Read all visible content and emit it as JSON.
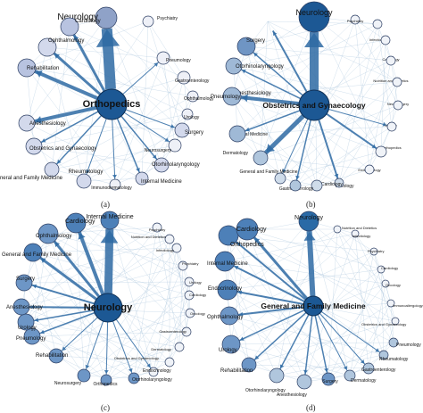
{
  "panels": [
    {
      "id": "a",
      "caption": "(a)",
      "center": "Orthopedics",
      "nodes": [
        {
          "label": "Neurology",
          "fill": "#8fa2c8"
        },
        {
          "label": "Psychiatry",
          "fill": "#eef0f7"
        },
        {
          "label": "Pneumology",
          "fill": "#eef0f7"
        },
        {
          "label": "Gastroenterology",
          "fill": "#eef0f7"
        },
        {
          "label": "Ophthalmology",
          "fill": "#eef0f7"
        },
        {
          "label": "Urology",
          "fill": "#eef0f7"
        },
        {
          "label": "Surgery",
          "fill": "#d3d9ec"
        },
        {
          "label": "Neurosurgery",
          "fill": "#eef0f7"
        },
        {
          "label": "Otorhinolaryngology",
          "fill": "#d3d9ec"
        },
        {
          "label": "Internal Medicine",
          "fill": "#d3d9ec"
        },
        {
          "label": "Immunodermatology",
          "fill": "#eef0f7"
        },
        {
          "label": "Rheumatology",
          "fill": "#d3d9ec"
        },
        {
          "label": "General and Family Medicine",
          "fill": "#d3d9ec"
        },
        {
          "label": "Obstetrics and Gynaecology",
          "fill": "#d3d9ec"
        },
        {
          "label": "Anesthesiology",
          "fill": "#d3d9ec"
        },
        {
          "label": "Rehabilitation",
          "fill": "#b8c3e0"
        },
        {
          "label": "Ophthalmology",
          "fill": "#d3d9ec"
        },
        {
          "label": "Cardiology",
          "fill": "#b8c3e0"
        }
      ]
    },
    {
      "id": "b",
      "caption": "(b)",
      "center": "Obstetrics and Gynaecology",
      "nodes": [
        {
          "label": "Neurology",
          "fill": "#1c5894"
        },
        {
          "label": "Psychiatry",
          "fill": "#f0f3f8"
        },
        {
          "label": "Infectiology",
          "fill": "#f0f3f8"
        },
        {
          "label": "Cardiology",
          "fill": "#f0f3f8"
        },
        {
          "label": "Nutrition and Dietetics",
          "fill": "#f0f3f8"
        },
        {
          "label": "Neurosurgery",
          "fill": "#f0f3f8"
        },
        {
          "label": "Urology",
          "fill": "#f0f3f8"
        },
        {
          "label": "Orthopedics",
          "fill": "#f0f3f8"
        },
        {
          "label": "Endocrinology",
          "fill": "#f0f3f8"
        },
        {
          "label": "Oncology",
          "fill": "#f0f3f8"
        },
        {
          "label": "Cardiology",
          "fill": "#cfdcea"
        },
        {
          "label": "Gastroenterology",
          "fill": "#cfdcea"
        },
        {
          "label": "General and Family Medicine",
          "fill": "#b0c6dd"
        },
        {
          "label": "Dermatology",
          "fill": "#cfdcea"
        },
        {
          "label": "Internal Medicine",
          "fill": "#b0c6dd"
        },
        {
          "label": "Anesthesiology",
          "fill": "#9fb9d6"
        },
        {
          "label": "Pneumology",
          "fill": "#9fb9d6"
        },
        {
          "label": "Otorhinolaryngology",
          "fill": "#9fb9d6"
        },
        {
          "label": "Surgery",
          "fill": "#6f95c4"
        }
      ]
    },
    {
      "id": "c",
      "caption": "(c)",
      "center": "Neurology",
      "nodes": [
        {
          "label": "Internal Medicine",
          "fill": "#4d80b8"
        },
        {
          "label": "Psychiatry",
          "fill": "#f0f3f8"
        },
        {
          "label": "Nutrition and Dietetics",
          "fill": "#f0f3f8"
        },
        {
          "label": "Infectiology",
          "fill": "#f0f3f8"
        },
        {
          "label": "Psychiatry",
          "fill": "#f0f3f8"
        },
        {
          "label": "Urology",
          "fill": "#f0f3f8"
        },
        {
          "label": "Cardiology",
          "fill": "#f0f3f8"
        },
        {
          "label": "Oncology",
          "fill": "#f0f3f8"
        },
        {
          "label": "Gastroenterology",
          "fill": "#f0f3f8"
        },
        {
          "label": "Dermatology",
          "fill": "#f0f3f8"
        },
        {
          "label": "Obstetrics and Gynaecology",
          "fill": "#f0f3f8"
        },
        {
          "label": "Endocrinology",
          "fill": "#f0f3f8"
        },
        {
          "label": "Otorhinolaryngology",
          "fill": "#6d96c6"
        },
        {
          "label": "Orthopedics",
          "fill": "#6d96c6"
        },
        {
          "label": "Neurosurgery",
          "fill": "#6d96c6"
        },
        {
          "label": "Rehabilitation",
          "fill": "#6d96c6"
        },
        {
          "label": "Pneumology",
          "fill": "#6d96c6"
        },
        {
          "label": "Urology",
          "fill": "#6d96c6"
        },
        {
          "label": "Anesthesiology",
          "fill": "#6d96c6"
        },
        {
          "label": "Surgery",
          "fill": "#6d96c6"
        },
        {
          "label": "General and Family Medicine",
          "fill": "#4d80b8"
        },
        {
          "label": "Ophthalmology",
          "fill": "#6d96c6"
        },
        {
          "label": "Cardiology",
          "fill": "#4d80b8"
        }
      ]
    },
    {
      "id": "d",
      "caption": "(d)",
      "center": "General and Family Medicine",
      "nodes": [
        {
          "label": "Neurology",
          "fill": "#2a6aa6"
        },
        {
          "label": "Nutrition and Dietetics",
          "fill": "#f0f3f8"
        },
        {
          "label": "Infectiology",
          "fill": "#f0f3f8"
        },
        {
          "label": "Psychiatry",
          "fill": "#f0f3f8"
        },
        {
          "label": "Cardiology",
          "fill": "#f0f3f8"
        },
        {
          "label": "Oncology",
          "fill": "#f0f3f8"
        },
        {
          "label": "Immunoallergology",
          "fill": "#f0f3f8"
        },
        {
          "label": "Obstetrics and Gynaecology",
          "fill": "#f0f3f8"
        },
        {
          "label": "Pneumology",
          "fill": "#b0c6dd"
        },
        {
          "label": "Rheumatology",
          "fill": "#b0c6dd"
        },
        {
          "label": "Gastroenterology",
          "fill": "#b0c6dd"
        },
        {
          "label": "Dermatology",
          "fill": "#b0c6dd"
        },
        {
          "label": "Surgery",
          "fill": "#6d96c6"
        },
        {
          "label": "Anesthesiology",
          "fill": "#b0c6dd"
        },
        {
          "label": "Otorhinolaryngology",
          "fill": "#b0c6dd"
        },
        {
          "label": "Rehabilitation",
          "fill": "#6d96c6"
        },
        {
          "label": "Urology",
          "fill": "#6d96c6"
        },
        {
          "label": "Ophthalmology",
          "fill": "#6d96c6"
        },
        {
          "label": "Endocrinology",
          "fill": "#4d80b8"
        },
        {
          "label": "Internal Medicine",
          "fill": "#4d80b8"
        },
        {
          "label": "Orthopedics",
          "fill": "#4d80b8"
        },
        {
          "label": "Cardiology",
          "fill": "#4d80b8"
        }
      ]
    }
  ],
  "colors": {
    "edge": "#2e6aa3",
    "edge_light": "#9fbdd9",
    "node_stroke": "#2c3e63",
    "center_a": "#1c5894",
    "center_b": "#1c5894",
    "center_c": "#1c5894",
    "center_d": "#1c5894"
  }
}
